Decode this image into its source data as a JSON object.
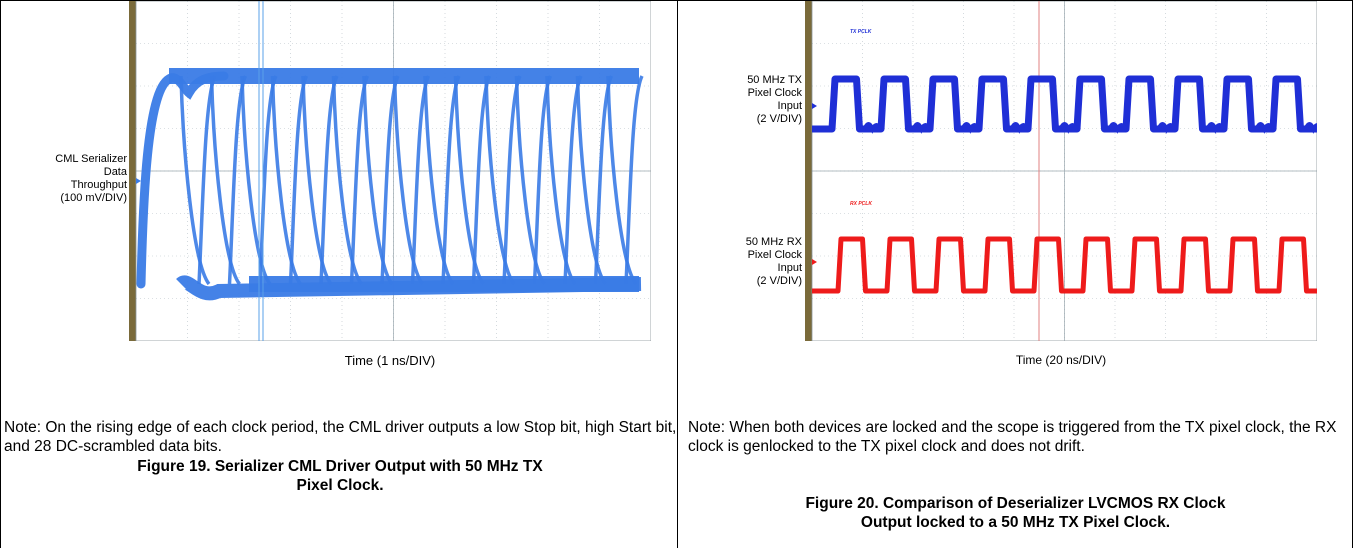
{
  "colors": {
    "blue": "#3a7be6",
    "tx_blue": "#1f2fd6",
    "rx_red": "#ee1b1b",
    "grid": "#b8c2c8",
    "bezel": "#7a6a3a"
  },
  "figure19": {
    "ylabel_lines": [
      "CML Serializer",
      "Data",
      "Throughput",
      "(100 mV/DIV)"
    ],
    "xlabel": "Time (1 ns/DIV)",
    "note": "Note: On the rising edge of each clock period, the CML driver outputs a low Stop bit, high Start bit, and 28 DC-scrambled data bits.",
    "caption_lines": [
      "Figure 19. Serializer CML Driver Output with 50 MHz TX",
      "Pixel Clock."
    ]
  },
  "figure20": {
    "tx_label_lines": [
      "50 MHz TX",
      "Pixel Clock",
      "Input",
      "(2 V/DIV)"
    ],
    "rx_label_lines": [
      "50 MHz RX",
      "Pixel Clock",
      "Input",
      "(2 V/DIV)"
    ],
    "tx_channel_label": "TX PCLK",
    "rx_channel_label": "RX PCLK",
    "xlabel": "Time (20 ns/DIV)",
    "note": "Note: When both devices are locked and the scope is triggered from the TX pixel clock, the RX clock is genlocked to the TX pixel clock and does not drift.",
    "caption_lines": [
      "Figure 20. Comparison of Deserializer LVCMOS RX Clock",
      "Output locked to a 50 MHz TX Pixel Clock."
    ]
  }
}
